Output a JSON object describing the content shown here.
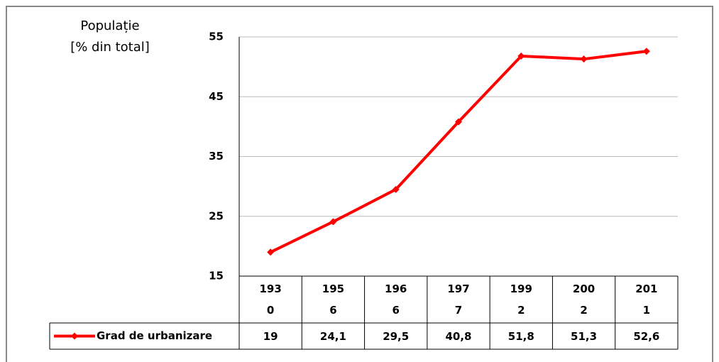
{
  "chart_data": {
    "type": "line",
    "ylabel": [
      "Populație",
      "[% din total]"
    ],
    "categories": [
      "1930",
      "1956",
      "1966",
      "1977",
      "1992",
      "2002",
      "2011"
    ],
    "series": [
      {
        "name": "Grad de urbanizare",
        "color": "#ff0000",
        "values": [
          19,
          24.1,
          29.5,
          40.8,
          51.8,
          51.3,
          52.6
        ],
        "value_labels": [
          "19",
          "24,1",
          "29,5",
          "40,8",
          "51,8",
          "51,3",
          "52,6"
        ]
      }
    ],
    "ylim": [
      15,
      55
    ],
    "yticks": [
      15,
      25,
      35,
      45,
      55
    ],
    "grid": true,
    "data_table": true
  }
}
